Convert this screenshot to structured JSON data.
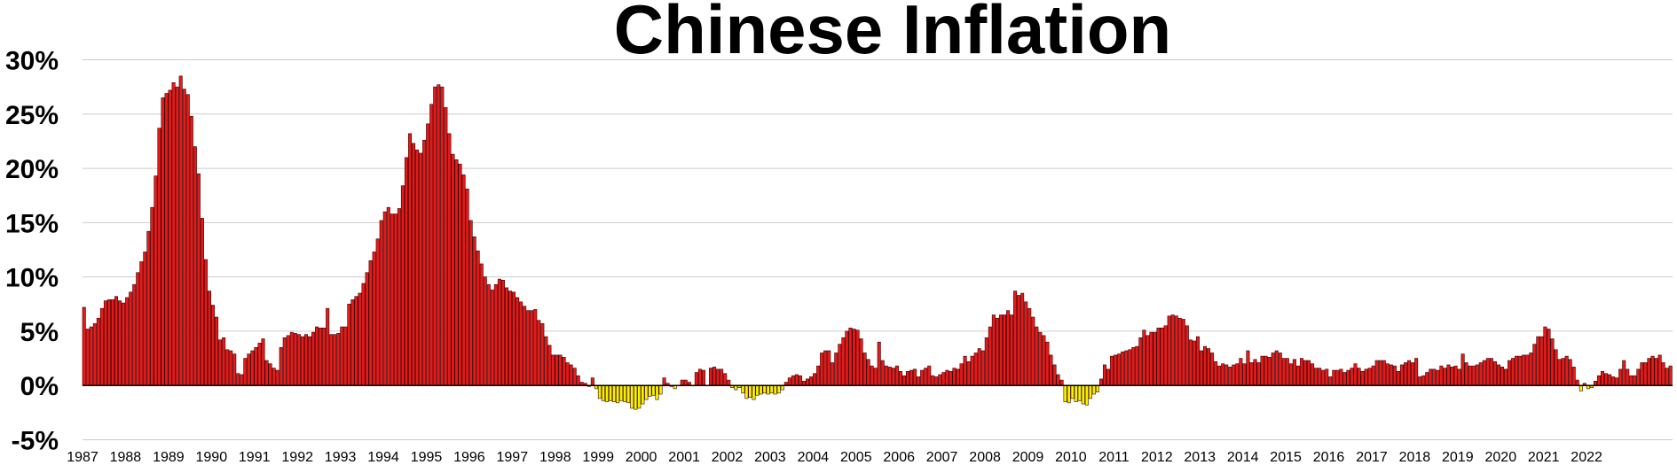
{
  "chart_data": {
    "type": "bar",
    "title": "Chinese Inflation",
    "xlabel": "",
    "ylabel": "",
    "ylim": [
      -5,
      30
    ],
    "y_ticks": [
      {
        "value": 30,
        "label": "30%"
      },
      {
        "value": 25,
        "label": "25%"
      },
      {
        "value": 20,
        "label": "20%"
      },
      {
        "value": 15,
        "label": "15%"
      },
      {
        "value": 10,
        "label": "10%"
      },
      {
        "value": 5,
        "label": "5%"
      },
      {
        "value": 0,
        "label": "0%"
      },
      {
        "value": -5,
        "label": "-5%"
      }
    ],
    "x_tick_labels": [
      "1987",
      "1988",
      "1989",
      "1990",
      "1991",
      "1992",
      "1993",
      "1994",
      "1995",
      "1996",
      "1997",
      "1998",
      "1999",
      "2000",
      "2001",
      "2002",
      "2003",
      "2004",
      "2005",
      "2006",
      "2007",
      "2008",
      "2009",
      "2010",
      "2011",
      "2012",
      "2013",
      "2014",
      "2015",
      "2016",
      "2017",
      "2018",
      "2019",
      "2020",
      "2021",
      "2022"
    ],
    "grid": true,
    "frequency": "monthly",
    "start": "1987-01",
    "colors": {
      "positive": "#e31b1b",
      "negative": "#f4f400",
      "edge": "#3a0000",
      "grid": "#cccccc",
      "zero_line": "#000000"
    },
    "values": [
      7.2,
      5.2,
      5.4,
      5.7,
      6.2,
      7.1,
      7.8,
      7.9,
      7.9,
      8.2,
      7.8,
      7.6,
      8.1,
      8.6,
      9.3,
      10.4,
      11.4,
      12.3,
      14.2,
      16.4,
      19.3,
      23.7,
      26.5,
      26.9,
      27.2,
      27.9,
      27.5,
      28.5,
      27.3,
      26.8,
      24.8,
      22.0,
      19.5,
      15.4,
      11.6,
      8.7,
      7.4,
      6.3,
      4.2,
      4.4,
      3.3,
      3.2,
      2.9,
      1.1,
      1.0,
      2.5,
      2.9,
      3.2,
      3.5,
      3.9,
      4.3,
      2.3,
      2.0,
      1.6,
      1.4,
      3.5,
      4.4,
      4.6,
      4.9,
      4.8,
      4.7,
      4.5,
      4.7,
      4.5,
      4.9,
      5.4,
      5.3,
      5.3,
      7.1,
      4.7,
      4.7,
      4.8,
      5.4,
      5.4,
      7.5,
      7.9,
      8.2,
      8.5,
      9.4,
      10.4,
      11.5,
      12.3,
      13.5,
      15.2,
      16.0,
      16.4,
      15.8,
      15.8,
      16.3,
      18.4,
      21.0,
      23.2,
      22.3,
      21.7,
      21.4,
      22.6,
      24.1,
      25.9,
      27.5,
      27.7,
      27.5,
      25.6,
      23.2,
      21.3,
      20.8,
      20.4,
      19.4,
      18.1,
      15.2,
      13.7,
      12.4,
      11.2,
      10.0,
      9.3,
      8.8,
      9.3,
      9.8,
      9.7,
      9.0,
      8.7,
      8.6,
      8.1,
      7.7,
      7.3,
      6.9,
      6.9,
      7.0,
      6.0,
      5.7,
      4.5,
      3.7,
      2.8,
      2.8,
      2.8,
      2.6,
      2.1,
      1.9,
      1.6,
      0.9,
      0.3,
      0.2,
      -0.1,
      0.7,
      -0.3,
      -1.2,
      -1.4,
      -1.5,
      -1.4,
      -1.5,
      -1.6,
      -1.4,
      -1.5,
      -1.6,
      -2.1,
      -2.2,
      -2.1,
      -1.7,
      -1.3,
      -1.0,
      -0.9,
      -1.3,
      -0.8,
      0.7,
      0.2,
      -0.1,
      -0.3,
      0.0,
      0.5,
      0.5,
      0.3,
      0.0,
      1.2,
      1.5,
      1.4,
      0.0,
      1.6,
      1.7,
      1.5,
      1.5,
      1.1,
      0.5,
      -0.2,
      -0.4,
      -0.2,
      -0.7,
      -1.2,
      -1.1,
      -1.3,
      -0.9,
      -0.8,
      -0.7,
      -0.8,
      -0.7,
      -0.8,
      -0.7,
      -0.4,
      0.3,
      0.7,
      0.9,
      1.0,
      0.9,
      0.4,
      0.6,
      0.8,
      1.1,
      1.8,
      3.0,
      3.2,
      3.2,
      2.1,
      3.0,
      3.8,
      4.4,
      5.0,
      5.3,
      5.2,
      5.1,
      4.3,
      3.0,
      2.4,
      1.8,
      1.6,
      4.0,
      2.3,
      1.8,
      1.7,
      1.6,
      1.8,
      1.3,
      0.9,
      1.3,
      1.4,
      1.5,
      0.8,
      1.4,
      1.6,
      1.8,
      0.9,
      0.8,
      1.0,
      1.2,
      1.4,
      1.3,
      1.6,
      1.5,
      2.0,
      2.7,
      2.2,
      2.7,
      3.0,
      3.4,
      3.2,
      4.4,
      5.4,
      6.5,
      6.2,
      6.5,
      6.5,
      6.9,
      6.5,
      8.7,
      8.3,
      8.5,
      7.7,
      7.1,
      6.3,
      5.4,
      4.9,
      4.6,
      4.0,
      2.8,
      1.9,
      1.0,
      0.5,
      -1.5,
      -1.6,
      -1.2,
      -1.5,
      -1.4,
      -1.7,
      -1.8,
      -1.2,
      -0.8,
      -0.6,
      0.6,
      1.9,
      1.5,
      2.7,
      2.8,
      2.9,
      3.1,
      3.2,
      3.3,
      3.5,
      3.6,
      4.4,
      5.1,
      4.6,
      4.9,
      4.9,
      5.3,
      5.3,
      5.5,
      6.4,
      6.5,
      6.4,
      6.2,
      6.1,
      5.5,
      4.2,
      4.1,
      4.5,
      3.2,
      3.6,
      3.4,
      3.0,
      2.2,
      1.8,
      2.0,
      1.9,
      1.7,
      1.9,
      2.0,
      2.5,
      2.0,
      3.2,
      2.1,
      2.4,
      2.1,
      2.7,
      2.7,
      2.6,
      3.0,
      3.2,
      3.0,
      2.5,
      2.5,
      2.0,
      2.4,
      1.8,
      2.5,
      2.3,
      2.3,
      2.0,
      1.6,
      1.6,
      1.4,
      1.5,
      0.8,
      1.4,
      1.4,
      1.5,
      1.2,
      1.4,
      1.6,
      2.0,
      1.6,
      1.3,
      1.5,
      1.6,
      1.8,
      2.3,
      2.3,
      2.3,
      2.0,
      1.9,
      1.8,
      1.3,
      1.9,
      2.1,
      2.3,
      2.1,
      2.5,
      0.8,
      0.9,
      1.2,
      1.5,
      1.5,
      1.4,
      1.8,
      1.6,
      1.9,
      1.7,
      1.8,
      1.5,
      2.9,
      2.1,
      1.8,
      1.8,
      1.9,
      2.1,
      2.3,
      2.5,
      2.5,
      2.2,
      1.9,
      1.7,
      1.5,
      2.3,
      2.5,
      2.7,
      2.7,
      2.8,
      2.8,
      3.0,
      3.8,
      4.5,
      4.5,
      5.4,
      5.2,
      4.3,
      3.3,
      2.4,
      2.5,
      2.7,
      2.4,
      1.7,
      0.5,
      -0.5,
      0.2,
      -0.3,
      -0.2,
      0.4,
      0.9,
      1.3,
      1.1,
      1.0,
      0.8,
      0.7,
      1.5,
      2.3,
      1.5,
      0.9,
      0.9,
      1.5,
      2.1,
      2.1,
      2.5,
      2.7,
      2.5,
      2.8,
      2.1,
      1.6,
      1.8
    ]
  }
}
